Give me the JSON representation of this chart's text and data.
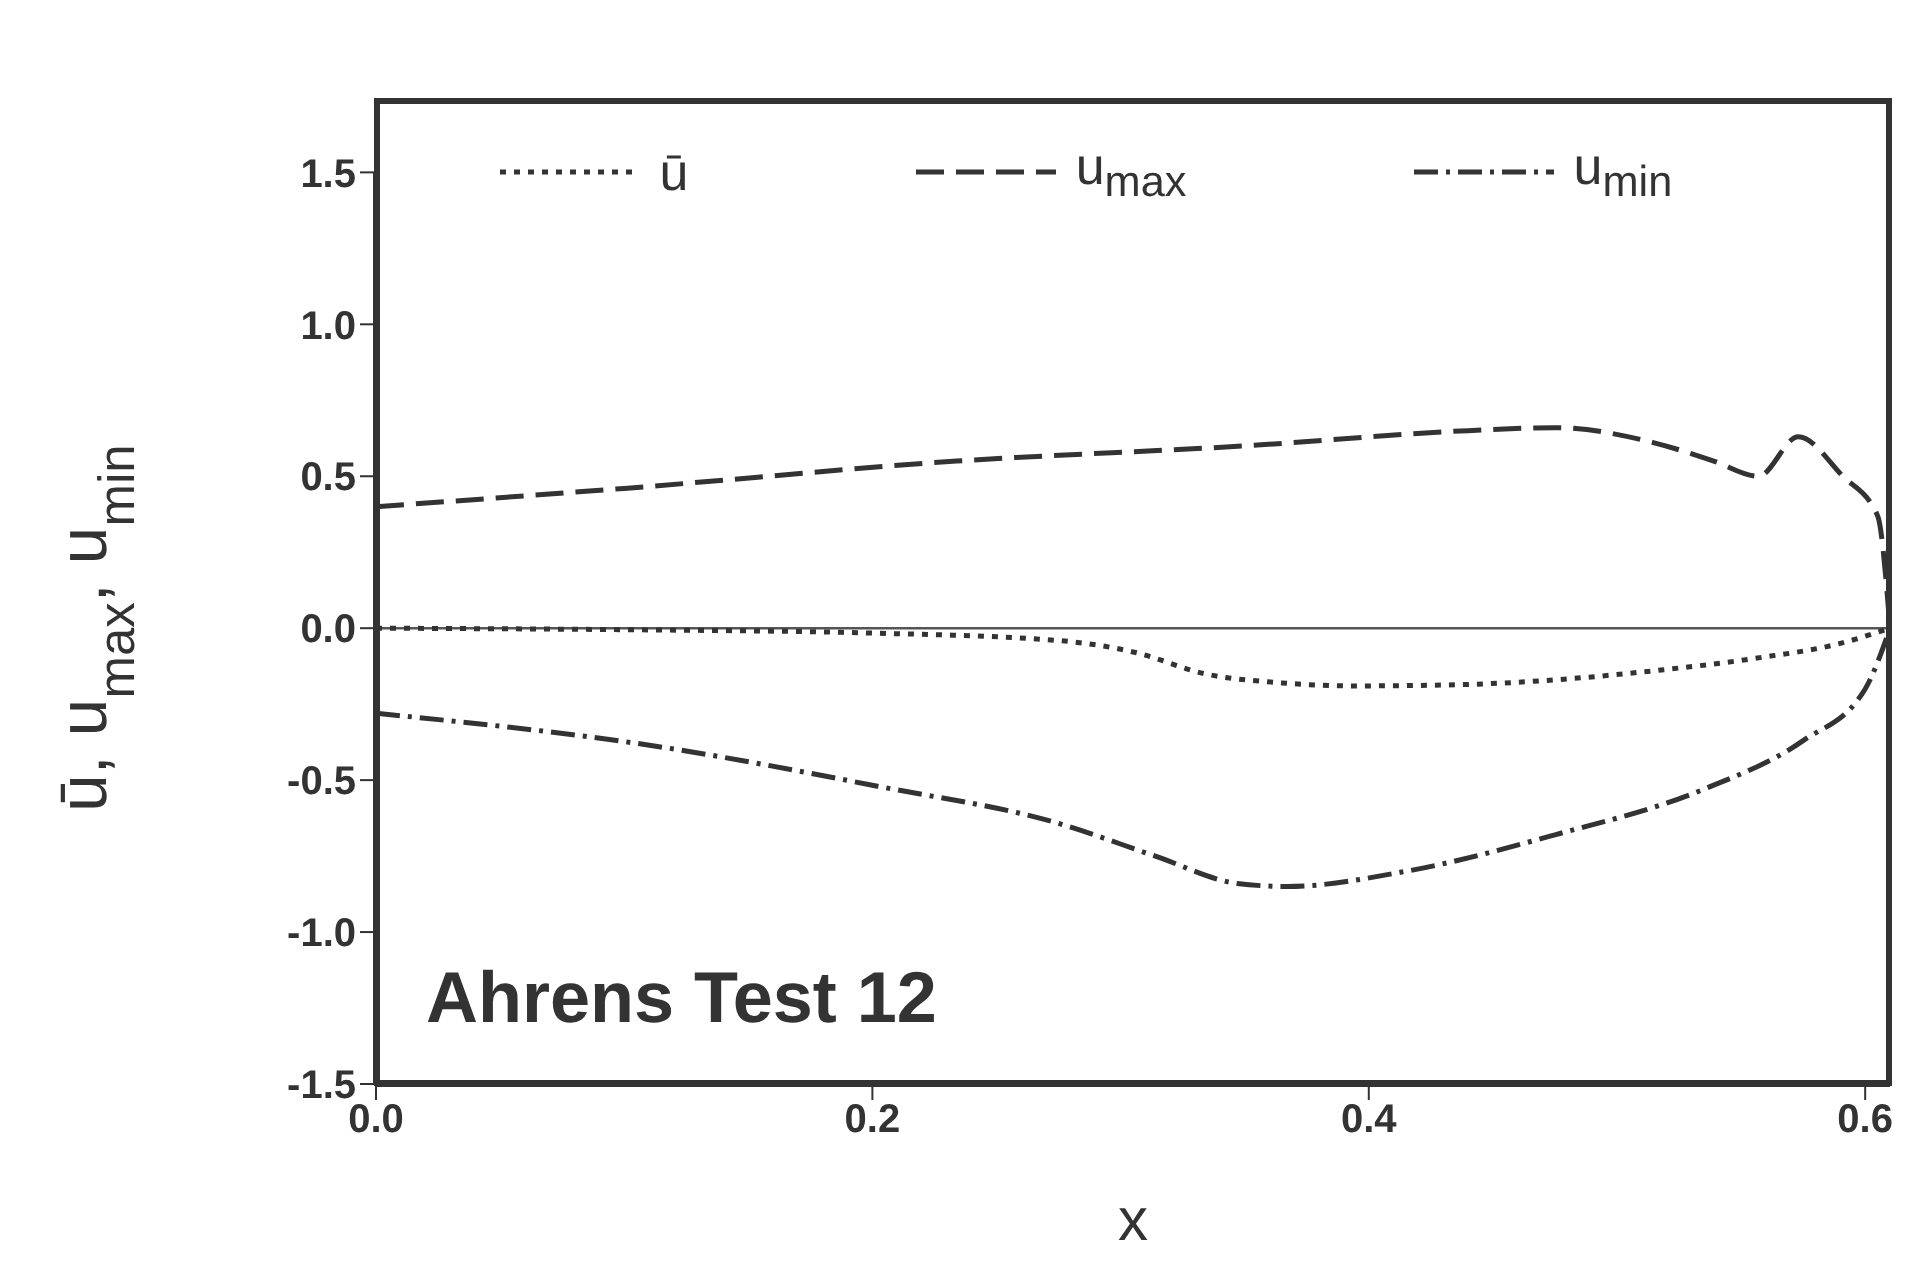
{
  "chart_data": {
    "type": "line",
    "xlabel": "x",
    "ylabel": "ū, u$_{max}$, u$_{min}$",
    "annotations": [
      "Ahrens Test 12"
    ],
    "xlim": [
      0,
      0.61
    ],
    "xticks": [
      {
        "value": 0,
        "label": "0.0"
      },
      0.2,
      0.4,
      0.6
    ],
    "ylim": [
      -1.5,
      1.5
    ],
    "yticks": [
      {
        "value": -1.5,
        "label": "-1.5"
      },
      {
        "value": -1,
        "label": "-1.0"
      },
      -0.5,
      {
        "value": 0,
        "label": "0.0"
      },
      0.5,
      {
        "value": 1,
        "label": "1.0"
      },
      1.5
    ],
    "legend": "top",
    "marker": "none",
    "ref_lines": [
      {
        "axis": "y",
        "value": 0,
        "color": "#555555",
        "line_style": "solid"
      }
    ],
    "series": [
      {
        "name": "ū",
        "color": "#333333",
        "line_style": "dotted",
        "x": [
          0,
          0.1,
          0.194,
          0.274,
          0.306,
          0.334,
          0.365,
          0.395,
          0.44,
          0.475,
          0.515,
          0.555,
          0.59,
          0.61
        ],
        "values": [
          0,
          -0.005,
          -0.015,
          -0.04,
          -0.08,
          -0.15,
          -0.18,
          -0.19,
          -0.185,
          -0.17,
          -0.14,
          -0.1,
          -0.05,
          0
        ]
      },
      {
        "name": "u$_{max}$",
        "color": "#333333",
        "line_style": "dashed",
        "x": [
          0,
          0.1,
          0.234,
          0.35,
          0.44,
          0.475,
          0.515,
          0.539,
          0.557,
          0.573,
          0.591,
          0.605,
          0.61
        ],
        "values": [
          0.4,
          0.46,
          0.55,
          0.6,
          0.65,
          0.66,
          0.61,
          0.55,
          0.5,
          0.63,
          0.5,
          0.37,
          0
        ]
      },
      {
        "name": "u$_{min}$",
        "color": "#333333",
        "line_style": "dashdot",
        "x": [
          0,
          0.114,
          0.202,
          0.274,
          0.314,
          0.347,
          0.367,
          0.415,
          0.475,
          0.535,
          0.575,
          0.6,
          0.61
        ],
        "values": [
          -0.28,
          -0.39,
          -0.52,
          -0.64,
          -0.75,
          -0.84,
          -0.85,
          -0.8,
          -0.68,
          -0.53,
          -0.37,
          -0.2,
          0
        ]
      }
    ]
  }
}
